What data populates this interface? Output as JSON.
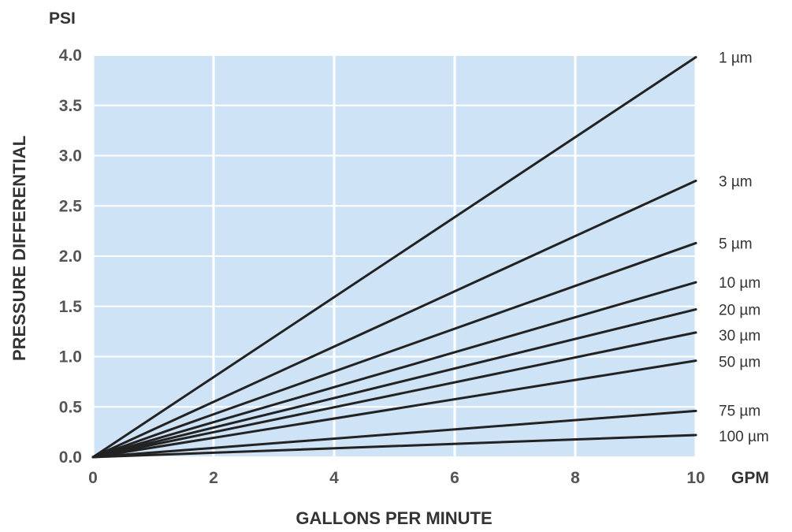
{
  "chart_data": {
    "type": "line",
    "title": "",
    "y_unit": "PSI",
    "x_unit": "GPM",
    "xlabel": "GALLONS PER MINUTE",
    "ylabel": "PRESSURE DIFFERENTIAL",
    "xlim": [
      0,
      10
    ],
    "ylim": [
      0,
      4.0
    ],
    "x_ticks": [
      "0",
      "2",
      "4",
      "6",
      "8",
      "10"
    ],
    "y_ticks": [
      "0.0",
      "0.5",
      "1.0",
      "1.5",
      "2.0",
      "2.5",
      "3.0",
      "3.5",
      "4.0"
    ],
    "grid": true,
    "legend": "series labels at right end of each line",
    "colors": {
      "plot_background": "#cfe3f6",
      "grid": "#ffffff",
      "line": "#222222"
    },
    "series": [
      {
        "name": "1 µm",
        "x": [
          0,
          10
        ],
        "y": [
          0,
          3.98
        ]
      },
      {
        "name": "3 µm",
        "x": [
          0,
          10
        ],
        "y": [
          0,
          2.75
        ]
      },
      {
        "name": "5 µm",
        "x": [
          0,
          10
        ],
        "y": [
          0,
          2.13
        ]
      },
      {
        "name": "10 µm",
        "x": [
          0,
          10
        ],
        "y": [
          0,
          1.74
        ]
      },
      {
        "name": "20 µm",
        "x": [
          0,
          10
        ],
        "y": [
          0,
          1.47
        ]
      },
      {
        "name": "30 µm",
        "x": [
          0,
          10
        ],
        "y": [
          0,
          1.24
        ]
      },
      {
        "name": "50 µm",
        "x": [
          0,
          10
        ],
        "y": [
          0,
          0.96
        ]
      },
      {
        "name": "75 µm",
        "x": [
          0,
          10
        ],
        "y": [
          0,
          0.46
        ]
      },
      {
        "name": "100 µm",
        "x": [
          0,
          10
        ],
        "y": [
          0,
          0.22
        ]
      }
    ]
  }
}
